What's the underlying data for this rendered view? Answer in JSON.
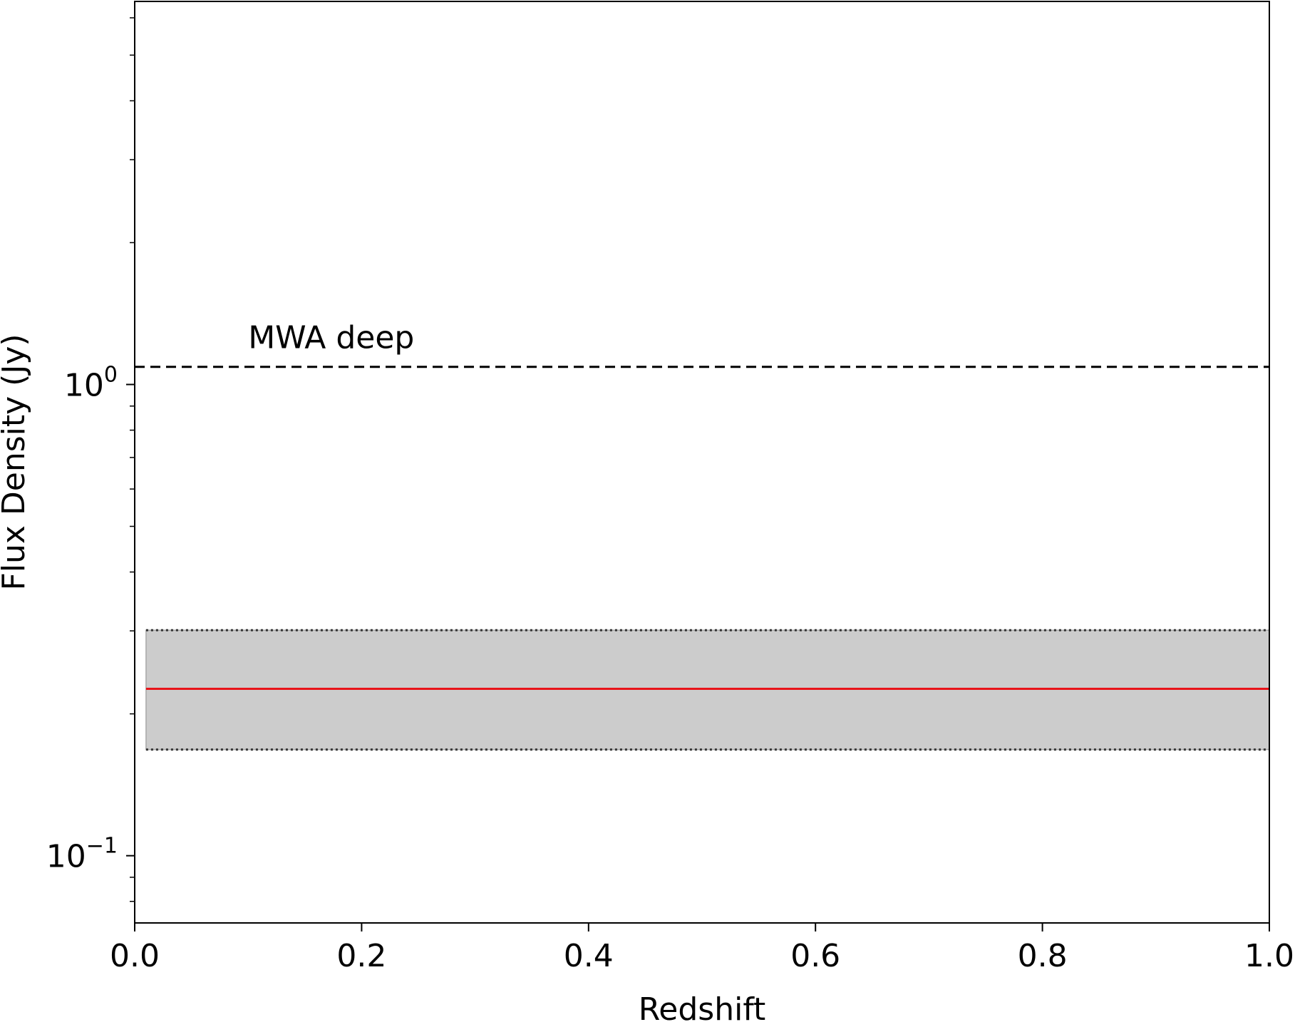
{
  "chart_data": {
    "type": "line",
    "title": "",
    "xlabel": "Redshift",
    "ylabel": "Flux Density (Jy)",
    "xlim": [
      0.0,
      1.0
    ],
    "ylim": [
      0.072,
      6.5
    ],
    "yscale": "log",
    "grid": false,
    "x_ticks": [
      {
        "value": 0.0,
        "label": "0.0"
      },
      {
        "value": 0.2,
        "label": "0.2"
      },
      {
        "value": 0.4,
        "label": "0.4"
      },
      {
        "value": 0.6,
        "label": "0.6"
      },
      {
        "value": 0.8,
        "label": "0.8"
      },
      {
        "value": 1.0,
        "label": "1.0"
      }
    ],
    "y_ticks": [
      {
        "value": 0.1,
        "base": "10",
        "exponent": "−1"
      },
      {
        "value": 1.0,
        "base": "10",
        "exponent": "0"
      }
    ],
    "series": [
      {
        "role": "central-value",
        "style": "solid",
        "color": "#e8141a",
        "x": [
          0.01,
          1.0
        ],
        "y": [
          0.226,
          0.226
        ]
      }
    ],
    "bands": [
      {
        "role": "uncertainty",
        "fill": "#cccccc",
        "edge_style": "dotted",
        "edge_color": "#333333",
        "x": [
          0.01,
          1.0
        ],
        "y_lower": 0.168,
        "y_upper": 0.301
      }
    ],
    "reference_lines": [
      {
        "label": "MWA deep",
        "style": "dashed",
        "color": "#000000",
        "y": 1.09,
        "x_start": 0.0,
        "x_end": 1.0,
        "label_x": 0.1
      }
    ]
  }
}
